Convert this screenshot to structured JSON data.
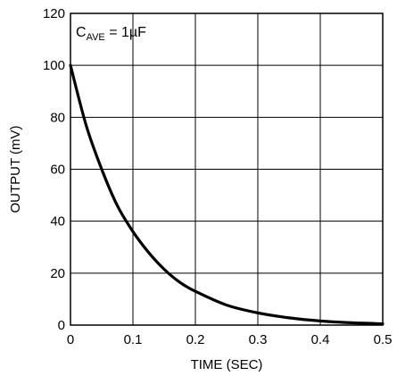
{
  "chart_data": {
    "type": "line",
    "title": "",
    "xlabel": "TIME (SEC)",
    "ylabel": "OUTPUT (mV)",
    "xlim": [
      0,
      0.5
    ],
    "ylim": [
      0,
      120
    ],
    "xticks": [
      "0",
      "0.1",
      "0.2",
      "0.3",
      "0.4",
      "0.5"
    ],
    "yticks": [
      "0",
      "20",
      "40",
      "60",
      "80",
      "100",
      "120"
    ],
    "grid": true,
    "annotation": {
      "main": "C",
      "sub": "AVE",
      "rest": " = 1µF"
    },
    "series": [
      {
        "x": [
          0,
          0.025,
          0.05,
          0.075,
          0.1,
          0.125,
          0.15,
          0.175,
          0.2,
          0.25,
          0.3,
          0.35,
          0.4,
          0.45,
          0.5
        ],
        "values": [
          100,
          77,
          60,
          46,
          36,
          28,
          21.5,
          16.5,
          13,
          7.7,
          4.7,
          2.8,
          1.6,
          0.9,
          0.5
        ]
      }
    ],
    "line_color": "#000000"
  }
}
